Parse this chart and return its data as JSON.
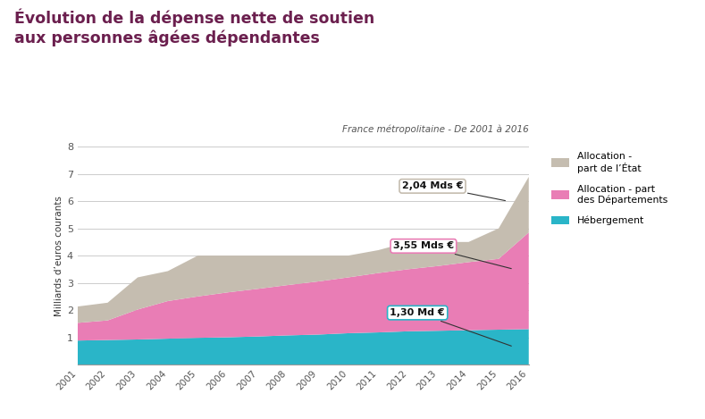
{
  "title_line1": "Évolution de la dépense nette de soutien",
  "title_line2": "aux personnes âgées dépendantes",
  "subtitle": "France métropolitaine - De 2001 à 2016",
  "ylabel": "Milliards d’euros courants",
  "years": [
    2001,
    2002,
    2003,
    2004,
    2005,
    2006,
    2007,
    2008,
    2009,
    2010,
    2011,
    2012,
    2013,
    2014,
    2015,
    2016
  ],
  "hebergement": [
    0.88,
    0.9,
    0.92,
    0.95,
    0.98,
    1.0,
    1.03,
    1.07,
    1.1,
    1.15,
    1.18,
    1.22,
    1.24,
    1.26,
    1.28,
    1.3
  ],
  "allocation_dept": [
    0.65,
    0.72,
    1.1,
    1.38,
    1.52,
    1.65,
    1.75,
    1.85,
    1.95,
    2.05,
    2.18,
    2.28,
    2.38,
    2.5,
    2.6,
    3.55
  ],
  "allocation_etat": [
    0.6,
    0.65,
    1.18,
    1.1,
    1.5,
    1.35,
    1.22,
    1.08,
    0.95,
    0.8,
    0.84,
    1.0,
    0.88,
    0.74,
    1.12,
    2.04
  ],
  "color_hebergement": "#2ab5c8",
  "color_allocation_dept": "#e97db5",
  "color_allocation_etat": "#c5bdb0",
  "annot_etat": "2,04 Mds €",
  "annot_dept": "3,55 Mds €",
  "annot_heberg": "1,30 Md €",
  "ylim": [
    0,
    8
  ],
  "yticks": [
    0,
    1,
    2,
    3,
    4,
    5,
    6,
    7,
    8
  ],
  "title_color": "#6b1f4e",
  "bg_color": "#ffffff",
  "grid_color": "#cccccc",
  "tick_color": "#555555"
}
